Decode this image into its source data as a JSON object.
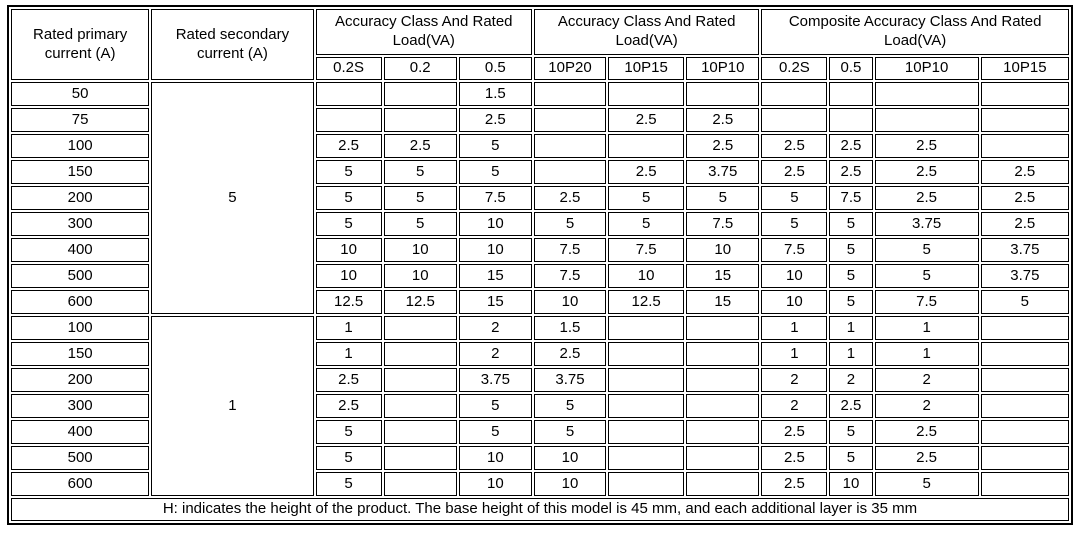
{
  "table": {
    "header": {
      "primary": "Rated primary current (A)",
      "secondary": "Rated secondary current (A)",
      "group1": "Accuracy Class And Rated Load(VA)",
      "group2": "Accuracy Class And Rated Load(VA)",
      "group3": "Composite Accuracy Class And Rated Load(VA)",
      "subcols": [
        "0.2S",
        "0.2",
        "0.5",
        "10P20",
        "10P15",
        "10P10",
        "0.2S",
        "0.5",
        "10P10",
        "10P15"
      ]
    },
    "blocks": [
      {
        "secondary": "5",
        "rows": [
          {
            "primary": "50",
            "cells": [
              "",
              "",
              "1.5",
              "",
              "",
              "",
              "",
              "",
              "",
              ""
            ]
          },
          {
            "primary": "75",
            "cells": [
              "",
              "",
              "2.5",
              "",
              "2.5",
              "2.5",
              "",
              "",
              "",
              ""
            ]
          },
          {
            "primary": "100",
            "cells": [
              "2.5",
              "2.5",
              "5",
              "",
              "",
              "2.5",
              "2.5",
              "2.5",
              "2.5",
              ""
            ]
          },
          {
            "primary": "150",
            "cells": [
              "5",
              "5",
              "5",
              "",
              "2.5",
              "3.75",
              "2.5",
              "2.5",
              "2.5",
              "2.5"
            ]
          },
          {
            "primary": "200",
            "cells": [
              "5",
              "5",
              "7.5",
              "2.5",
              "5",
              "5",
              "5",
              "7.5",
              "2.5",
              "2.5"
            ]
          },
          {
            "primary": "300",
            "cells": [
              "5",
              "5",
              "10",
              "5",
              "5",
              "7.5",
              "5",
              "5",
              "3.75",
              "2.5"
            ]
          },
          {
            "primary": "400",
            "cells": [
              "10",
              "10",
              "10",
              "7.5",
              "7.5",
              "10",
              "7.5",
              "5",
              "5",
              "3.75"
            ]
          },
          {
            "primary": "500",
            "cells": [
              "10",
              "10",
              "15",
              "7.5",
              "10",
              "15",
              "10",
              "5",
              "5",
              "3.75"
            ]
          },
          {
            "primary": "600",
            "cells": [
              "12.5",
              "12.5",
              "15",
              "10",
              "12.5",
              "15",
              "10",
              "5",
              "7.5",
              "5"
            ]
          }
        ]
      },
      {
        "secondary": "1",
        "rows": [
          {
            "primary": "100",
            "cells": [
              "1",
              "",
              "2",
              "1.5",
              "",
              "",
              "1",
              "1",
              "1",
              ""
            ]
          },
          {
            "primary": "150",
            "cells": [
              "1",
              "",
              "2",
              "2.5",
              "",
              "",
              "1",
              "1",
              "1",
              ""
            ]
          },
          {
            "primary": "200",
            "cells": [
              "2.5",
              "",
              "3.75",
              "3.75",
              "",
              "",
              "2",
              "2",
              "2",
              ""
            ]
          },
          {
            "primary": "300",
            "cells": [
              "2.5",
              "",
              "5",
              "5",
              "",
              "",
              "2",
              "2.5",
              "2",
              ""
            ]
          },
          {
            "primary": "400",
            "cells": [
              "5",
              "",
              "5",
              "5",
              "",
              "",
              "2.5",
              "5",
              "2.5",
              ""
            ]
          },
          {
            "primary": "500",
            "cells": [
              "5",
              "",
              "10",
              "10",
              "",
              "",
              "2.5",
              "5",
              "2.5",
              ""
            ]
          },
          {
            "primary": "600",
            "cells": [
              "5",
              "",
              "10",
              "10",
              "",
              "",
              "2.5",
              "10",
              "5",
              ""
            ]
          }
        ]
      }
    ],
    "footnote": "H: indicates the height of the product. The base height of this model is 45 mm, and each additional layer is 35 mm"
  },
  "colors": {
    "border": "#000000",
    "text": "#000000",
    "background": "#ffffff"
  }
}
